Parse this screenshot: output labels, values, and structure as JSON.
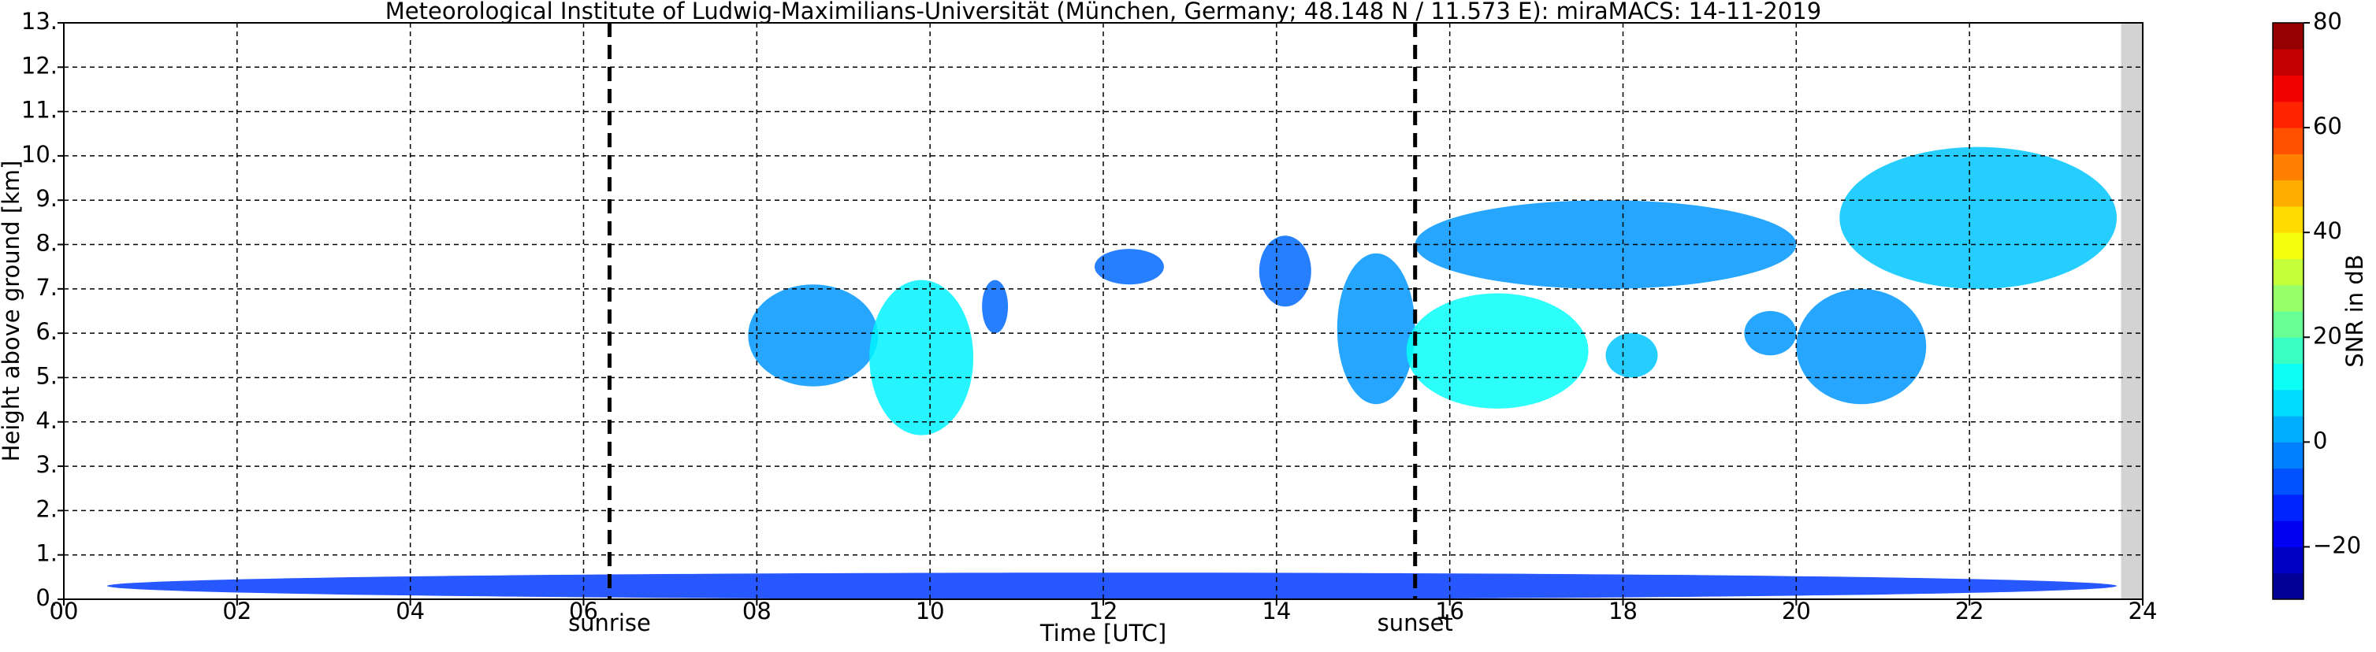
{
  "chart_data": {
    "type": "time-height",
    "title": "Meteorological Institute of Ludwig-Maximilians-Universität (München, Germany; 48.148 N / 11.573 E):    miraMACS: 14-11-2019",
    "x_label": "Time [UTC]",
    "y_label": "Height above ground [km]",
    "xlim": [
      0,
      24
    ],
    "xticks": [
      {
        "value": 0,
        "label": "00"
      },
      {
        "value": 2,
        "label": "02"
      },
      {
        "value": 4,
        "label": "04"
      },
      {
        "value": 6,
        "label": "06"
      },
      {
        "value": 8,
        "label": "08"
      },
      {
        "value": 10,
        "label": "10"
      },
      {
        "value": 12,
        "label": "12"
      },
      {
        "value": 14,
        "label": "14"
      },
      {
        "value": 16,
        "label": "16"
      },
      {
        "value": 18,
        "label": "18"
      },
      {
        "value": 20,
        "label": "20"
      },
      {
        "value": 22,
        "label": "22"
      },
      {
        "value": 24,
        "label": "24"
      }
    ],
    "ylim": [
      0,
      13
    ],
    "yticks": [
      {
        "value": 0,
        "label": "0."
      },
      {
        "value": 1,
        "label": "1."
      },
      {
        "value": 2,
        "label": "2."
      },
      {
        "value": 3,
        "label": "3."
      },
      {
        "value": 4,
        "label": "4."
      },
      {
        "value": 5,
        "label": "5."
      },
      {
        "value": 6,
        "label": "6."
      },
      {
        "value": 7,
        "label": "7."
      },
      {
        "value": 8,
        "label": "8."
      },
      {
        "value": 9,
        "label": "9."
      },
      {
        "value": 10,
        "label": "10."
      },
      {
        "value": 11,
        "label": "11."
      },
      {
        "value": 12,
        "label": "12."
      },
      {
        "value": 13,
        "label": "13."
      }
    ],
    "grid": true,
    "colormap": "jet",
    "colorbar_label": "SNR in dB",
    "clim": [
      -30,
      80
    ],
    "colorbar_ticks": [
      {
        "value": -20,
        "label": "−20"
      },
      0,
      20,
      40,
      60,
      80
    ],
    "markers": [
      {
        "x": 6.3,
        "label": "sunrise"
      },
      {
        "x": 15.6,
        "label": "sunset"
      }
    ],
    "no_data": [
      23.75,
      24
    ],
    "echoes": [
      {
        "x": [
          0.5,
          23.7
        ],
        "y": [
          0.0,
          0.6
        ],
        "snr": -10
      },
      {
        "x": [
          7.9,
          9.4
        ],
        "y": [
          4.8,
          7.1
        ],
        "snr": 0
      },
      {
        "x": [
          9.3,
          10.5
        ],
        "y": [
          3.7,
          7.2
        ],
        "snr": 10
      },
      {
        "x": [
          10.6,
          10.9
        ],
        "y": [
          6.0,
          7.2
        ],
        "snr": -5
      },
      {
        "x": [
          11.9,
          12.7
        ],
        "y": [
          7.1,
          7.9
        ],
        "snr": -5
      },
      {
        "x": [
          13.8,
          14.4
        ],
        "y": [
          6.6,
          8.2
        ],
        "snr": -5
      },
      {
        "x": [
          14.7,
          15.6
        ],
        "y": [
          4.4,
          7.8
        ],
        "snr": 0
      },
      {
        "x": [
          15.5,
          17.6
        ],
        "y": [
          4.3,
          6.9
        ],
        "snr": 12
      },
      {
        "x": [
          15.6,
          20.0
        ],
        "y": [
          7.0,
          9.0
        ],
        "snr": 0
      },
      {
        "x": [
          17.8,
          18.4
        ],
        "y": [
          5.0,
          6.0
        ],
        "snr": 5
      },
      {
        "x": [
          19.4,
          20.0
        ],
        "y": [
          5.5,
          6.5
        ],
        "snr": 0
      },
      {
        "x": [
          20.5,
          23.7
        ],
        "y": [
          7.0,
          10.2
        ],
        "snr": 5
      },
      {
        "x": [
          20.0,
          21.5
        ],
        "y": [
          4.4,
          7.0
        ],
        "snr": 0
      }
    ]
  }
}
